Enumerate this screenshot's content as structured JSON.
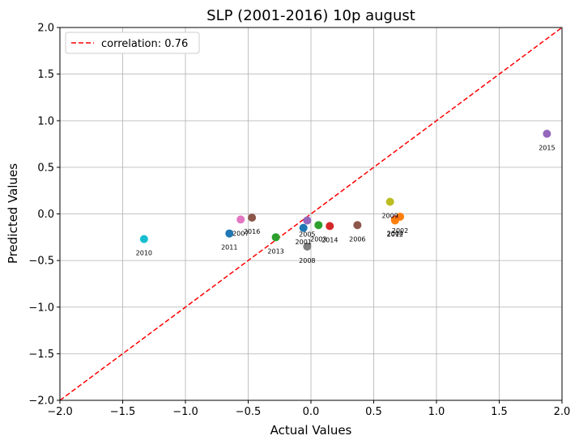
{
  "chart_data": {
    "type": "scatter",
    "title": "SLP (2001-2016) 10p august",
    "xlabel": "Actual Values",
    "ylabel": "Predicted Values",
    "xlim": [
      -2.0,
      2.0
    ],
    "ylim": [
      -2.0,
      2.0
    ],
    "xticks": [
      "−2.0",
      "−1.5",
      "−1.0",
      "−0.5",
      "0.0",
      "0.5",
      "1.0",
      "1.5",
      "2.0"
    ],
    "yticks": [
      "−2.0",
      "−1.5",
      "−1.0",
      "−0.5",
      "0.0",
      "0.5",
      "1.0",
      "1.5",
      "2.0"
    ],
    "grid": true,
    "legend": {
      "position": "top-left",
      "entries": [
        {
          "label": "correlation: 0.76",
          "style": "dashed",
          "color": "#ff0000"
        }
      ]
    },
    "reference_line": {
      "type": "identity",
      "color": "#ff0000",
      "style": "dashed"
    },
    "points": [
      {
        "year": "2001",
        "x": -0.06,
        "y": -0.15,
        "color": "#1f77b4"
      },
      {
        "year": "2002",
        "x": 0.71,
        "y": -0.03,
        "color": "#ff7f0e"
      },
      {
        "year": "2003",
        "x": 0.06,
        "y": -0.12,
        "color": "#2ca02c"
      },
      {
        "year": "2004",
        "x": 0.67,
        "y": -0.06,
        "color": "#d62728"
      },
      {
        "year": "2005",
        "x": -0.03,
        "y": -0.07,
        "color": "#9467bd"
      },
      {
        "year": "2006",
        "x": 0.37,
        "y": -0.12,
        "color": "#8c564b"
      },
      {
        "year": "2007",
        "x": -0.56,
        "y": -0.06,
        "color": "#e377c2"
      },
      {
        "year": "2008",
        "x": -0.03,
        "y": -0.35,
        "color": "#7f7f7f"
      },
      {
        "year": "2009",
        "x": 0.63,
        "y": 0.13,
        "color": "#bcbd22"
      },
      {
        "year": "2010",
        "x": -1.33,
        "y": -0.27,
        "color": "#17becf"
      },
      {
        "year": "2011",
        "x": -0.65,
        "y": -0.21,
        "color": "#1f77b4"
      },
      {
        "year": "2012",
        "x": 0.67,
        "y": -0.07,
        "color": "#ff7f0e"
      },
      {
        "year": "2013",
        "x": -0.28,
        "y": -0.25,
        "color": "#2ca02c"
      },
      {
        "year": "2014",
        "x": 0.15,
        "y": -0.13,
        "color": "#d62728"
      },
      {
        "year": "2015",
        "x": 1.88,
        "y": 0.86,
        "color": "#9467bd"
      },
      {
        "year": "2016",
        "x": -0.47,
        "y": -0.04,
        "color": "#8c564b"
      }
    ]
  }
}
